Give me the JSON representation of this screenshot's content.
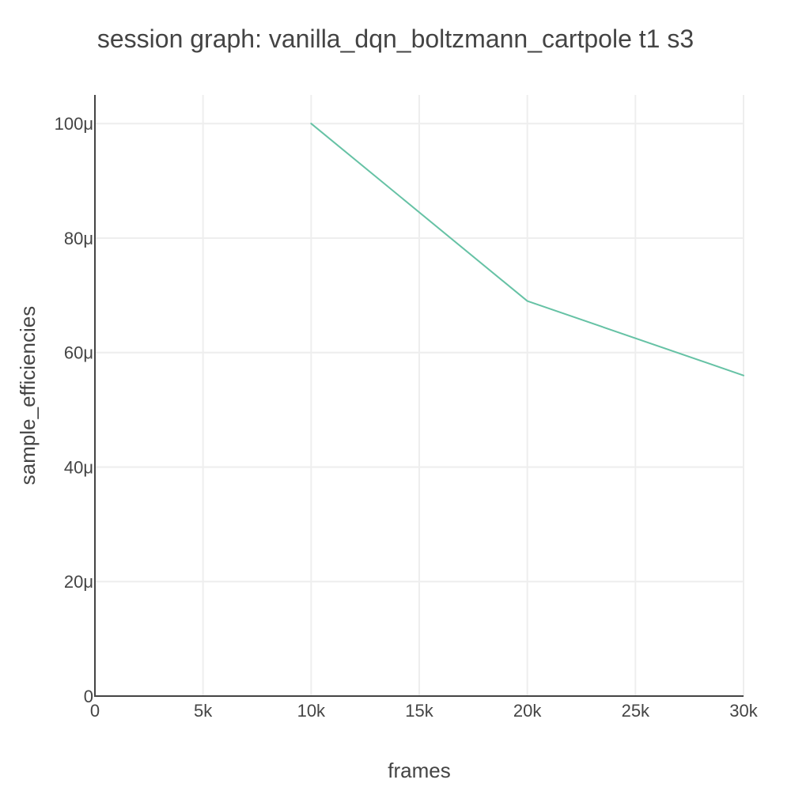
{
  "chart_data": {
    "type": "line",
    "title": "session graph: vanilla_dqn_boltzmann_cartpole t1 s3",
    "xlabel": "frames",
    "ylabel": "sample_efficiencies",
    "xlim": [
      0,
      30000
    ],
    "ylim": [
      0,
      0.000105
    ],
    "x_ticks": [
      0,
      5000,
      10000,
      15000,
      20000,
      25000,
      30000
    ],
    "x_tick_labels": [
      "0",
      "5k",
      "10k",
      "15k",
      "20k",
      "25k",
      "30k"
    ],
    "y_ticks": [
      0,
      2e-05,
      4e-05,
      6e-05,
      8e-05,
      0.0001
    ],
    "y_tick_labels": [
      "0",
      "20μ",
      "40μ",
      "60μ",
      "80μ",
      "100μ"
    ],
    "grid": true,
    "series": [
      {
        "x": [
          10000,
          20000,
          30000
        ],
        "values": [
          0.0001,
          6.9e-05,
          5.6e-05
        ],
        "color": "#66c2a5"
      }
    ]
  }
}
